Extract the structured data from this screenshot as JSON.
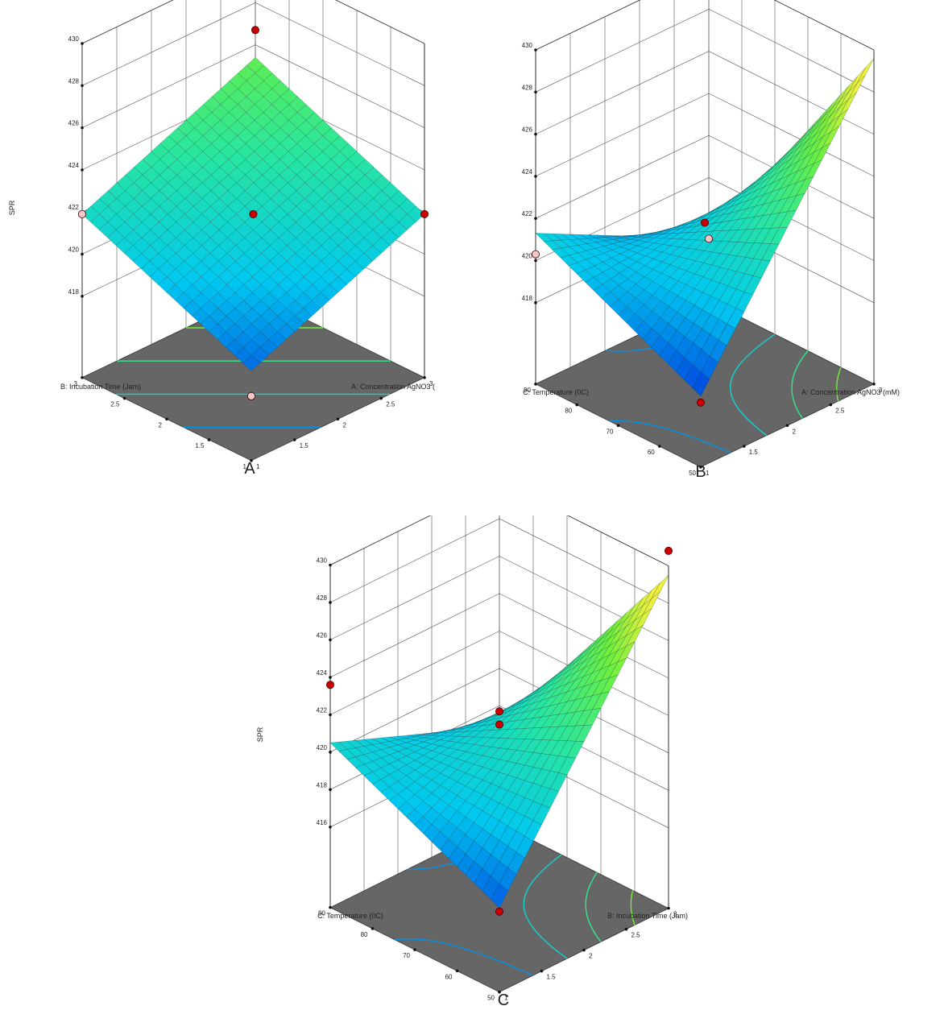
{
  "chart_data": [
    {
      "type": "surface",
      "panel_label": "A",
      "zlabel": "SPR",
      "xlabel": "A: Concentration AgNO3 (",
      "ylabel": "B: Incubation Time (Jam)",
      "xticks": [
        "1",
        "1.5",
        "2",
        "2.5",
        "3"
      ],
      "yticks": [
        "1",
        "1.5",
        "2",
        "2.5",
        "3"
      ],
      "zticks": [
        "418",
        "420",
        "422",
        "424",
        "426",
        "428",
        "430"
      ],
      "zlim": [
        417,
        430
      ],
      "surface_corners": {
        "x_low_y_low": 418.4,
        "x_high_y_low": 421.9,
        "x_low_y_high": 421.9,
        "x_high_y_high": 425.4
      },
      "design_points": [
        {
          "x": 3,
          "y": 3,
          "z": 426.7,
          "color": "#cc0000"
        },
        {
          "x": 2,
          "y": 2,
          "z": 421.9,
          "color": "#cc0000"
        },
        {
          "x": 3,
          "y": 1,
          "z": 421.9,
          "color": "#cc0000"
        },
        {
          "x": 1,
          "y": 3,
          "z": 421.9,
          "color": "#f5c8c8"
        },
        {
          "x": 1,
          "y": 1,
          "z": 417.2,
          "color": "#f5c8c8"
        }
      ]
    },
    {
      "type": "surface",
      "panel_label": "B",
      "zlabel": "SPR",
      "xlabel": "A: Concentration AgNO3 (mM)",
      "ylabel": "C: Temperature (0C)",
      "xticks": [
        "1",
        "1.5",
        "2",
        "2.5",
        "3"
      ],
      "yticks": [
        "50",
        "60",
        "70",
        "80",
        "90"
      ],
      "zticks": [
        "418",
        "420",
        "422",
        "424",
        "426",
        "428",
        "430"
      ],
      "zlim": [
        417,
        430
      ],
      "surface_corners": {
        "x_low_y_low": 417.5,
        "x_high_y_low": 429.6,
        "x_low_y_high": 421.3,
        "x_high_y_high": 417.1
      },
      "design_points": [
        {
          "x": 2,
          "y": 70,
          "z": 421.8,
          "color": "#cc0000"
        },
        {
          "x": 1,
          "y": 50,
          "z": 417.2,
          "color": "#cc0000"
        },
        {
          "x": 3,
          "y": 90,
          "z": 417.1,
          "color": "#f5c8c8"
        },
        {
          "x": 1,
          "y": 90,
          "z": 420.3,
          "color": "#f5c8c8"
        }
      ]
    },
    {
      "type": "surface",
      "panel_label": "C",
      "zlabel": "SPR",
      "xlabel": "B: Incubation Time (Jam)",
      "ylabel": "C: Temperature (0C)",
      "xticks": [
        "1",
        "1.5",
        "2",
        "2.5",
        "3"
      ],
      "yticks": [
        "50",
        "60",
        "70",
        "80",
        "90"
      ],
      "zticks": [
        "416",
        "418",
        "420",
        "422",
        "424",
        "426",
        "428",
        "430"
      ],
      "zlim": [
        415,
        430
      ],
      "surface_corners": {
        "x_low_y_low": 416.2,
        "x_high_y_low": 429.5,
        "x_low_y_high": 420.5,
        "x_high_y_high": 416.9
      },
      "design_points": [
        {
          "x": 3,
          "y": 50,
          "z": 430.8,
          "color": "#cc0000"
        },
        {
          "x": 2,
          "y": 70,
          "z": 422.2,
          "color": "#cc0000"
        },
        {
          "x": 1,
          "y": 50,
          "z": 416.0,
          "color": "#cc0000"
        },
        {
          "x": 1,
          "y": 90,
          "z": 423.6,
          "color": "#cc0000"
        },
        {
          "x": 3,
          "y": 90,
          "z": 417.0,
          "color": "#cc0000"
        }
      ]
    }
  ]
}
